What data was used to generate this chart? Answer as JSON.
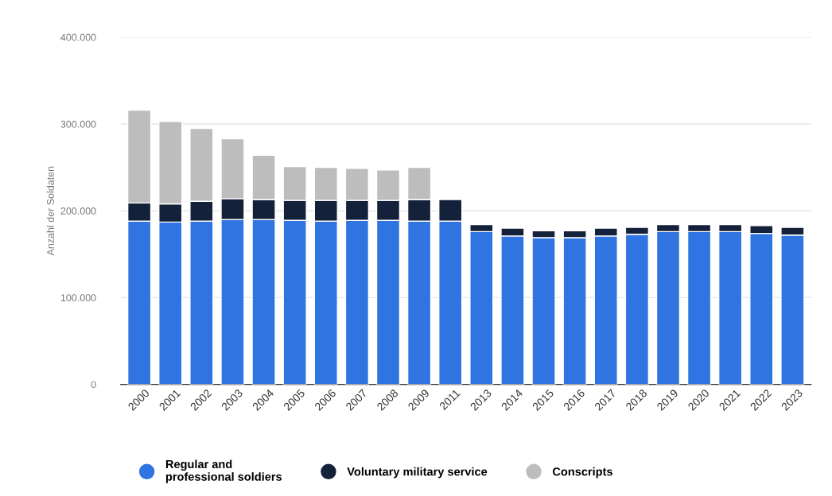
{
  "chart_data": {
    "type": "bar",
    "stacked": true,
    "ylabel": "Anzahl der Soldaten",
    "categories": [
      "2000",
      "2001",
      "2002",
      "2003",
      "2004",
      "2005",
      "2006",
      "2007",
      "2008",
      "2009",
      "2011",
      "2013",
      "2014",
      "2015",
      "2016",
      "2017",
      "2018",
      "2019",
      "2020",
      "2021",
      "2022",
      "2023"
    ],
    "series": [
      {
        "name": "Regular and\nprofessional soldiers",
        "color": "#2f74e0",
        "values": [
          188000,
          187000,
          188000,
          190000,
          190000,
          189000,
          188000,
          189000,
          189000,
          188000,
          188000,
          176000,
          171000,
          169000,
          169000,
          171000,
          173000,
          176000,
          176000,
          176000,
          174000,
          172000
        ]
      },
      {
        "name": "Voluntary military service",
        "color": "#14213a",
        "values": [
          21000,
          21000,
          23000,
          24000,
          23000,
          23000,
          24000,
          23000,
          23000,
          25000,
          25000,
          8000,
          9000,
          8000,
          8000,
          9000,
          8000,
          8000,
          8000,
          8000,
          9000,
          9000
        ]
      },
      {
        "name": "Conscripts",
        "color": "#bdbdbd",
        "values": [
          107000,
          95000,
          84000,
          69000,
          51000,
          39000,
          38000,
          37000,
          35000,
          37000,
          null,
          null,
          null,
          null,
          null,
          null,
          null,
          null,
          null,
          null,
          null,
          null
        ]
      }
    ],
    "ylim": [
      0,
      400000
    ],
    "yticks": [
      {
        "value": 0,
        "label": "0"
      },
      {
        "value": 100000,
        "label": "100.000"
      },
      {
        "value": 200000,
        "label": "200.000"
      },
      {
        "value": 300000,
        "label": "300.000"
      },
      {
        "value": 400000,
        "label": "400.000"
      }
    ],
    "grid": "y",
    "legend": "bottom"
  }
}
